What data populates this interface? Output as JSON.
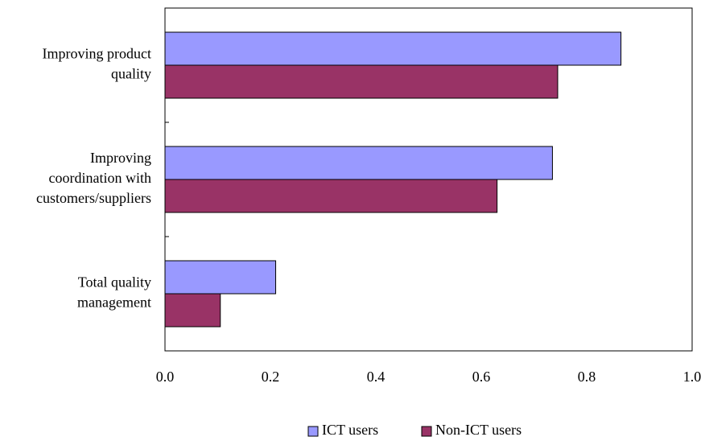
{
  "chart_data": {
    "type": "bar",
    "orientation": "horizontal",
    "categories": [
      [
        "Improving product",
        "quality"
      ],
      [
        "Improving",
        "coordination with",
        "customers/suppliers"
      ],
      [
        "Total quality",
        "management"
      ]
    ],
    "series": [
      {
        "name": "ICT users",
        "color": "#9999ff",
        "values": [
          0.865,
          0.735,
          0.21
        ]
      },
      {
        "name": "Non-ICT users",
        "color": "#993366",
        "values": [
          0.745,
          0.63,
          0.105
        ]
      }
    ],
    "xlim": [
      0,
      1.0
    ],
    "xticks": [
      "0.0",
      "0.2",
      "0.4",
      "0.6",
      "0.8",
      "1.0"
    ],
    "title": "",
    "xlabel": "",
    "ylabel": "",
    "grid": false,
    "legend_position": "bottom"
  }
}
